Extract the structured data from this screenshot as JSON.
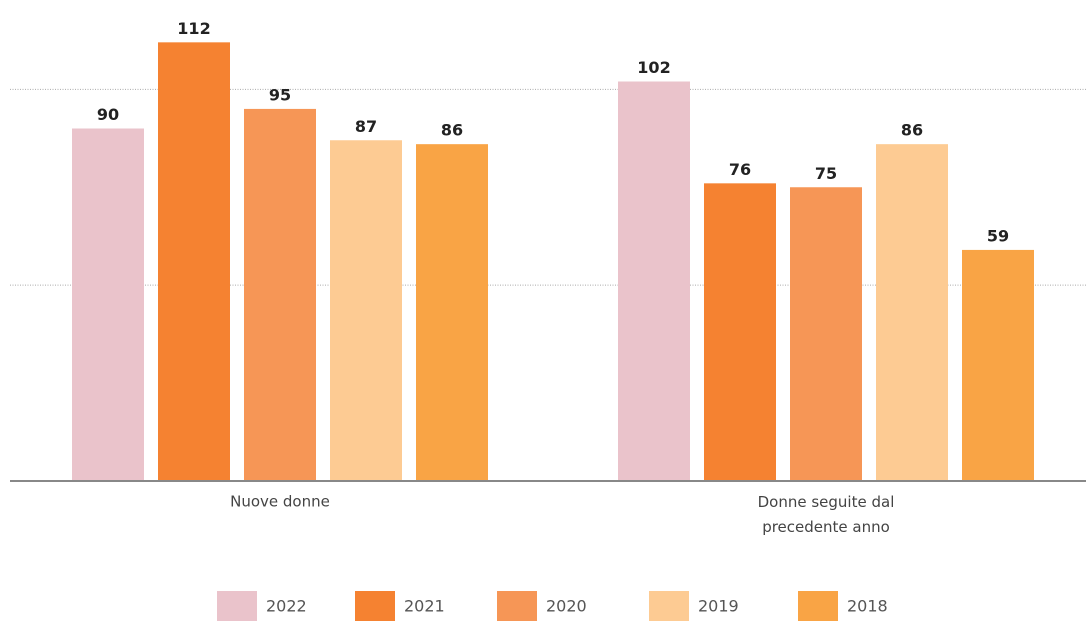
{
  "chart_data": {
    "type": "bar",
    "categories": [
      "Nuove donne",
      "Donne seguite dal precedente anno"
    ],
    "series": [
      {
        "name": "2022",
        "color": "#eac3cb",
        "values": [
          90,
          102
        ]
      },
      {
        "name": "2021",
        "color": "#f58231",
        "values": [
          112,
          76
        ]
      },
      {
        "name": "2020",
        "color": "#f69656",
        "values": [
          95,
          75
        ]
      },
      {
        "name": "2019",
        "color": "#fdcb93",
        "values": [
          87,
          86
        ]
      },
      {
        "name": "2018",
        "color": "#f9a445",
        "values": [
          86,
          59
        ]
      }
    ],
    "ylim": [
      0,
      120
    ],
    "gridlines": [
      50,
      100
    ],
    "grid": true,
    "legend": "bottom"
  }
}
